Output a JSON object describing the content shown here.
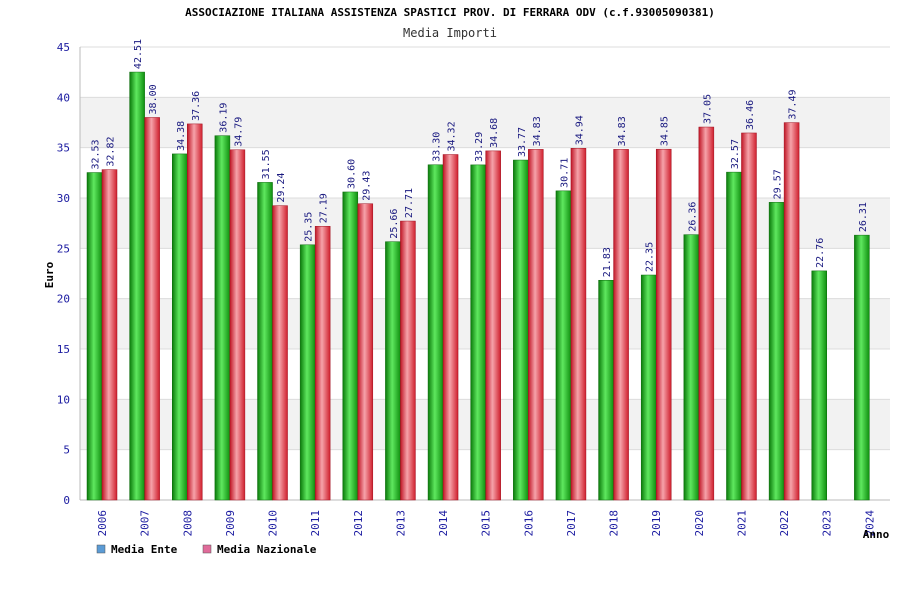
{
  "chart_data": {
    "type": "bar",
    "title": "ASSOCIAZIONE ITALIANA ASSISTENZA SPASTICI PROV. DI FERRARA ODV (c.f.93005090381)",
    "subtitle": "Media Importi",
    "xlabel": "Anno",
    "ylabel": "Euro",
    "ylim": [
      0,
      45
    ],
    "yticks": [
      0,
      5,
      10,
      15,
      20,
      25,
      30,
      35,
      40,
      45
    ],
    "grid": true,
    "legend_position": "bottom-left",
    "categories": [
      "2006",
      "2007",
      "2008",
      "2009",
      "2010",
      "2011",
      "2012",
      "2013",
      "2014",
      "2015",
      "2016",
      "2017",
      "2018",
      "2019",
      "2020",
      "2021",
      "2022",
      "2023",
      "2024"
    ],
    "series": [
      {
        "name": "Media Ente",
        "color": "#1fae1f",
        "legend_color": "#5b9bd5",
        "values": [
          32.53,
          42.51,
          34.38,
          36.19,
          31.55,
          25.35,
          30.6,
          25.66,
          33.3,
          33.29,
          33.77,
          30.71,
          21.83,
          22.35,
          26.36,
          32.57,
          29.57,
          22.76,
          26.31
        ],
        "labels": [
          "32.53",
          "42.51",
          "34.38",
          "36.19",
          "31.55",
          "25.35",
          "30.60",
          "25.66",
          "33.30",
          "33.29",
          "33.77",
          "30.71",
          "21.83",
          "22.35",
          "26.36",
          "32.57",
          "29.57",
          "22.76",
          "26.31"
        ]
      },
      {
        "name": "Media Nazionale",
        "color": "#e5323f",
        "legend_color": "#e06b9a",
        "values": [
          32.82,
          38.0,
          37.36,
          34.79,
          29.24,
          27.19,
          29.43,
          27.71,
          34.32,
          34.68,
          34.83,
          34.94,
          34.83,
          34.85,
          37.05,
          36.46,
          37.49,
          null,
          null
        ],
        "labels": [
          "32.82",
          "38.00",
          "37.36",
          "34.79",
          "29.24",
          "27.19",
          "29.43",
          "27.71",
          "34.32",
          "34.68",
          "34.83",
          "34.94",
          "34.83",
          "34.85",
          "37.05",
          "36.46",
          "37.49",
          "",
          ""
        ]
      }
    ]
  }
}
